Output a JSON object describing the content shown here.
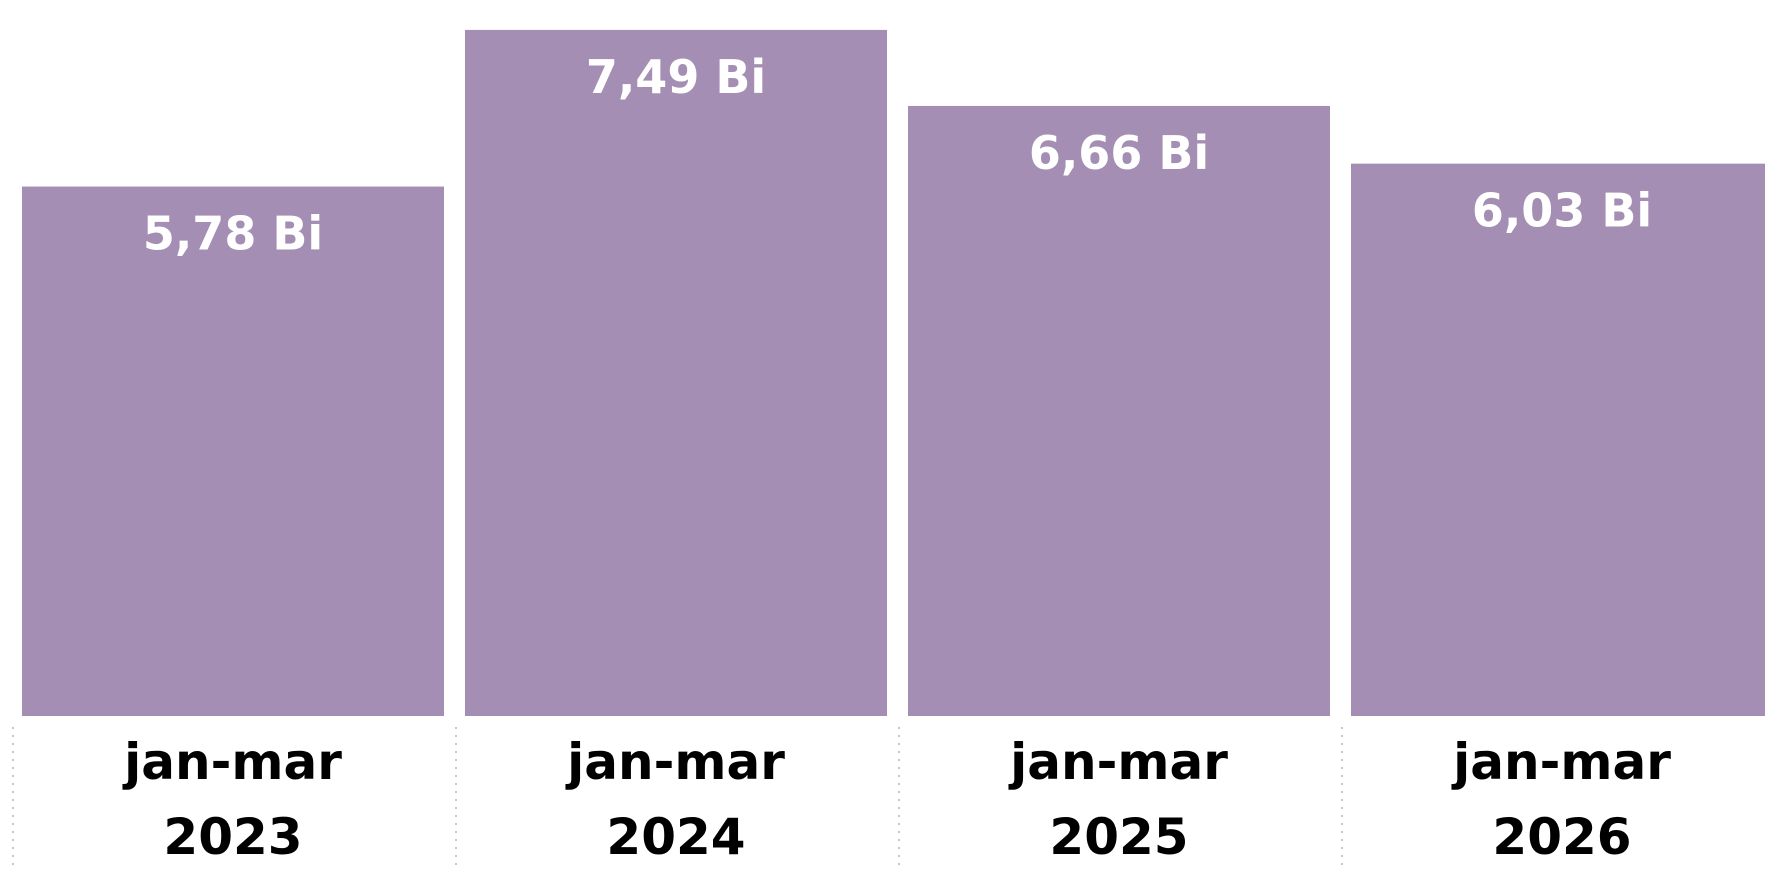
{
  "colors": {
    "bar": "#a48eb3",
    "separator": "#c8c8c8",
    "background": "#ffffff",
    "label_text": "#ffffff",
    "axis_text": "#000000"
  },
  "chart_data": {
    "type": "bar",
    "categories": [
      [
        "jan-mar",
        "2023"
      ],
      [
        "jan-mar",
        "2024"
      ],
      [
        "jan-mar",
        "2025"
      ],
      [
        "jan-mar",
        "2026"
      ]
    ],
    "values": [
      5.78,
      7.49,
      6.66,
      6.03
    ],
    "data_labels": [
      "5,78 Bi",
      "7,49 Bi",
      "6,66 Bi",
      "6,03 Bi"
    ],
    "unit": "Bi",
    "title": "",
    "xlabel": "",
    "ylabel": "",
    "grid": false,
    "legend": "none"
  }
}
